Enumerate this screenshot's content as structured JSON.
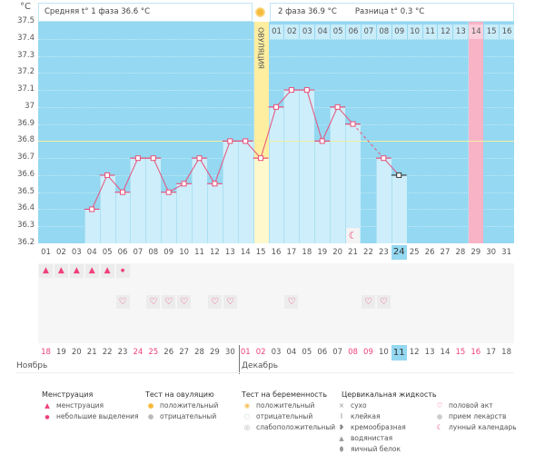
{
  "header": {
    "phase1_label": "Средняя t° 1 фаза 36.6 °C",
    "phase2_label": "2 фаза 36.9 °C",
    "diff_label": "Разница t° 0.3 °C",
    "ovulation_label": "ОВУЛЯЦИЯ"
  },
  "y_axis": {
    "unit": "°C",
    "ticks": [
      "37.5",
      "37.4",
      "37.3",
      "37.2",
      "37.1",
      "37",
      "36.9",
      "36.8",
      "36.7",
      "36.6",
      "36.5",
      "36.4",
      "36.3",
      "36.2"
    ]
  },
  "chart_data": {
    "type": "line",
    "ylim": [
      36.2,
      37.5
    ],
    "coverline": 36.8,
    "ovulation_day": 15,
    "current_day": 24,
    "highlight_day": 29,
    "cycle_days": [
      "01",
      "02",
      "03",
      "04",
      "05",
      "06",
      "07",
      "08",
      "09",
      "10",
      "11",
      "12",
      "13",
      "14",
      "15",
      "16",
      "17",
      "18",
      "19",
      "20",
      "21",
      "22",
      "23",
      "24",
      "25",
      "26",
      "27",
      "28",
      "29",
      "30",
      "31"
    ],
    "temps": [
      null,
      null,
      null,
      36.4,
      36.6,
      36.5,
      36.7,
      36.7,
      36.5,
      36.55,
      36.7,
      36.55,
      36.8,
      36.8,
      36.7,
      37.0,
      37.1,
      37.1,
      36.8,
      37.0,
      36.9,
      null,
      36.7,
      36.6,
      null,
      null,
      null,
      null,
      null,
      null,
      null
    ],
    "phase2_days": [
      "01",
      "02",
      "03",
      "04",
      "05",
      "06",
      "07",
      "08",
      "09",
      "10",
      "11",
      "12",
      "13",
      "14",
      "15",
      "16"
    ]
  },
  "colors": {
    "plot_bg": "#94d8f1",
    "bar": "#cdeefa",
    "line": "#e8507a",
    "ovulation": "#fef6b8",
    "highlight": "#f9b3c6",
    "accent_red": "#f0407a"
  },
  "markers": {
    "menstruation_days": [
      1,
      2,
      3,
      4,
      5
    ],
    "spotting_days": [
      6
    ],
    "intercourse_days": [
      6,
      8,
      9,
      10,
      12,
      13,
      17,
      22,
      23
    ],
    "moon_days": [
      21
    ]
  },
  "calendar": {
    "dates": [
      "18",
      "19",
      "20",
      "21",
      "22",
      "23",
      "24",
      "25",
      "26",
      "27",
      "28",
      "29",
      "30",
      "01",
      "02",
      "03",
      "04",
      "05",
      "06",
      "07",
      "08",
      "09",
      "10",
      "11",
      "12",
      "13",
      "14",
      "15",
      "16",
      "17",
      "18"
    ],
    "red_indices": [
      0,
      6,
      7,
      13,
      14,
      20,
      21,
      27,
      28
    ],
    "current_index": 23,
    "months": [
      "Ноябрь",
      "Декабрь"
    ]
  },
  "legend": {
    "menstruation": {
      "title": "Менструация",
      "items": [
        "менструация",
        "небольшие выделения"
      ]
    },
    "ovulation_test": {
      "title": "Тест на овуляцию",
      "items": [
        "положительный",
        "отрицательный"
      ]
    },
    "pregnancy_test": {
      "title": "Тест на беременность",
      "items": [
        "положительный",
        "отрицательный",
        "слабоположительный"
      ]
    },
    "cervical": {
      "title": "Цервикальная жидкость",
      "items": [
        "сухо",
        "клейкая",
        "кремообразная",
        "водянистая",
        "яичный белок"
      ]
    },
    "other": {
      "items": [
        "половой акт",
        "прием лекарств",
        "лунный календарь"
      ]
    }
  }
}
